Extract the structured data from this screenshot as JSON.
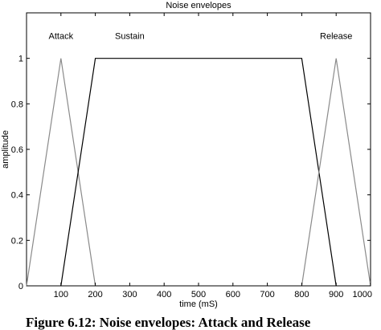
{
  "chart_data": {
    "type": "line",
    "title": "Noise envelopes",
    "xlabel": "time (mS)",
    "ylabel": "amplitude",
    "xlim": [
      0,
      1000
    ],
    "ylim": [
      0,
      1.2
    ],
    "xticks": [
      "100",
      "200",
      "300",
      "400",
      "500",
      "600",
      "700",
      "800",
      "900",
      "1000"
    ],
    "yticks": [
      "0",
      "0.2",
      "0.4",
      "0.6",
      "0.8",
      "1"
    ],
    "grid": false,
    "annotations": [
      {
        "text": "Attack",
        "x": 100,
        "y": 1.1
      },
      {
        "text": "Sustain",
        "x": 300,
        "y": 1.1
      },
      {
        "text": "Release",
        "x": 900,
        "y": 1.1
      }
    ],
    "series": [
      {
        "color": "#8a8a8a",
        "x": [
          0,
          100,
          200
        ],
        "y": [
          0,
          1,
          0
        ]
      },
      {
        "color": "#000000",
        "x": [
          100,
          200,
          800,
          900
        ],
        "y": [
          0,
          1,
          1,
          0
        ]
      },
      {
        "color": "#8a8a8a",
        "x": [
          800,
          900,
          1000
        ],
        "y": [
          0,
          1,
          0
        ]
      }
    ]
  },
  "caption": "Figure 6.12: Noise envelopes: Attack and Release"
}
